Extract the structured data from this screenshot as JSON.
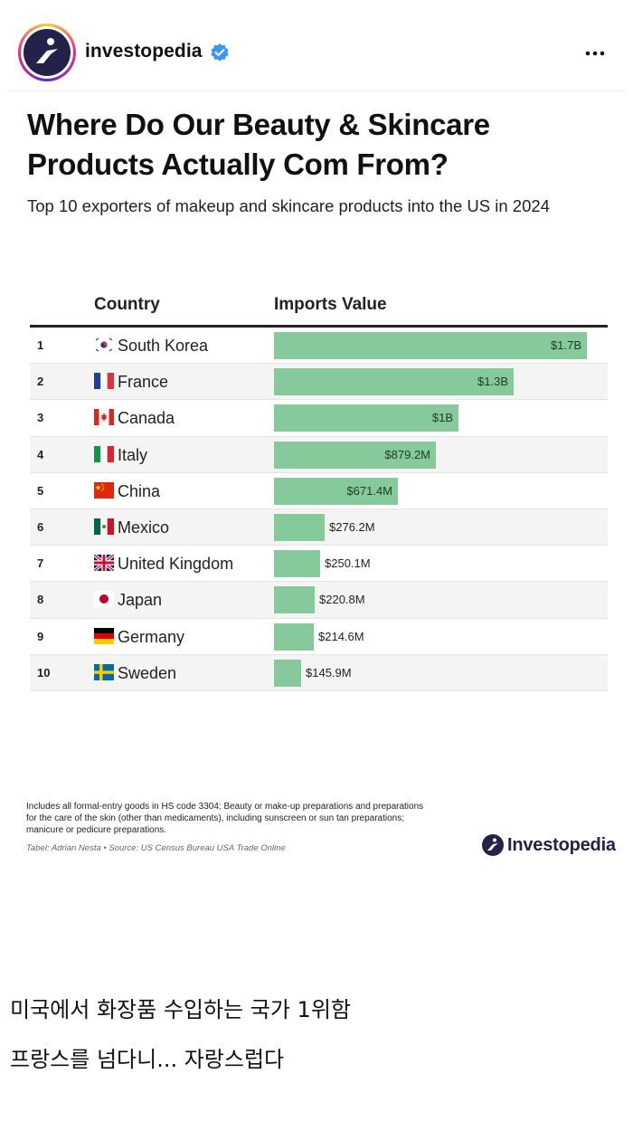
{
  "post": {
    "username": "investopedia",
    "verified_icon": "verified-badge-icon",
    "more_icon": "more-options-icon"
  },
  "infographic": {
    "title_line1": "Where Do Our Beauty & Skincare",
    "title_line2": "Products Actually Com From?",
    "subtitle": "Top 10 exporters of makeup and skincare products into the US in 2024",
    "col_country": "Country",
    "col_imports": "Imports Value",
    "bar_color": "#86c99a",
    "footnote": "Includes all formal-entry goods in HS code 3304: Beauty or make-up preparations and preparations for the care of the skin (other than medicaments), including sunscreen or sun tan preparations; manicure or pedicure preparations.",
    "credit": "Tabel: Adrian Nesta • Source: US Census Bureau USA Trade Online",
    "brand": "Investopedia"
  },
  "chart_data": {
    "type": "table",
    "columns": [
      "",
      "Country",
      "Imports Value"
    ],
    "unit": "USD",
    "rows": [
      {
        "rank": "1",
        "country": "South Korea",
        "label": "$1.7B",
        "value": 1700000000,
        "flag": "south-korea-flag-icon"
      },
      {
        "rank": "2",
        "country": "France",
        "label": "$1.3B",
        "value": 1300000000,
        "flag": "france-flag-icon"
      },
      {
        "rank": "3",
        "country": "Canada",
        "label": "$1B",
        "value": 1000000000,
        "flag": "canada-flag-icon"
      },
      {
        "rank": "4",
        "country": "Italy",
        "label": "$879.2M",
        "value": 879200000,
        "flag": "italy-flag-icon"
      },
      {
        "rank": "5",
        "country": "China",
        "label": "$671.4M",
        "value": 671400000,
        "flag": "china-flag-icon"
      },
      {
        "rank": "6",
        "country": "Mexico",
        "label": "$276.2M",
        "value": 276200000,
        "flag": "mexico-flag-icon"
      },
      {
        "rank": "7",
        "country": "United Kingdom",
        "label": "$250.1M",
        "value": 250100000,
        "flag": "united-kingdom-flag-icon"
      },
      {
        "rank": "8",
        "country": "Japan",
        "label": "$220.8M",
        "value": 220800000,
        "flag": "japan-flag-icon"
      },
      {
        "rank": "9",
        "country": "Germany",
        "label": "$214.6M",
        "value": 214600000,
        "flag": "germany-flag-icon"
      },
      {
        "rank": "10",
        "country": "Sweden",
        "label": "$145.9M",
        "value": 145900000,
        "flag": "sweden-flag-icon"
      }
    ]
  },
  "caption": {
    "line1": "미국에서 화장품 수입하는 국가 1위함",
    "line2": "프랑스를 넘다니... 자랑스럽다"
  }
}
